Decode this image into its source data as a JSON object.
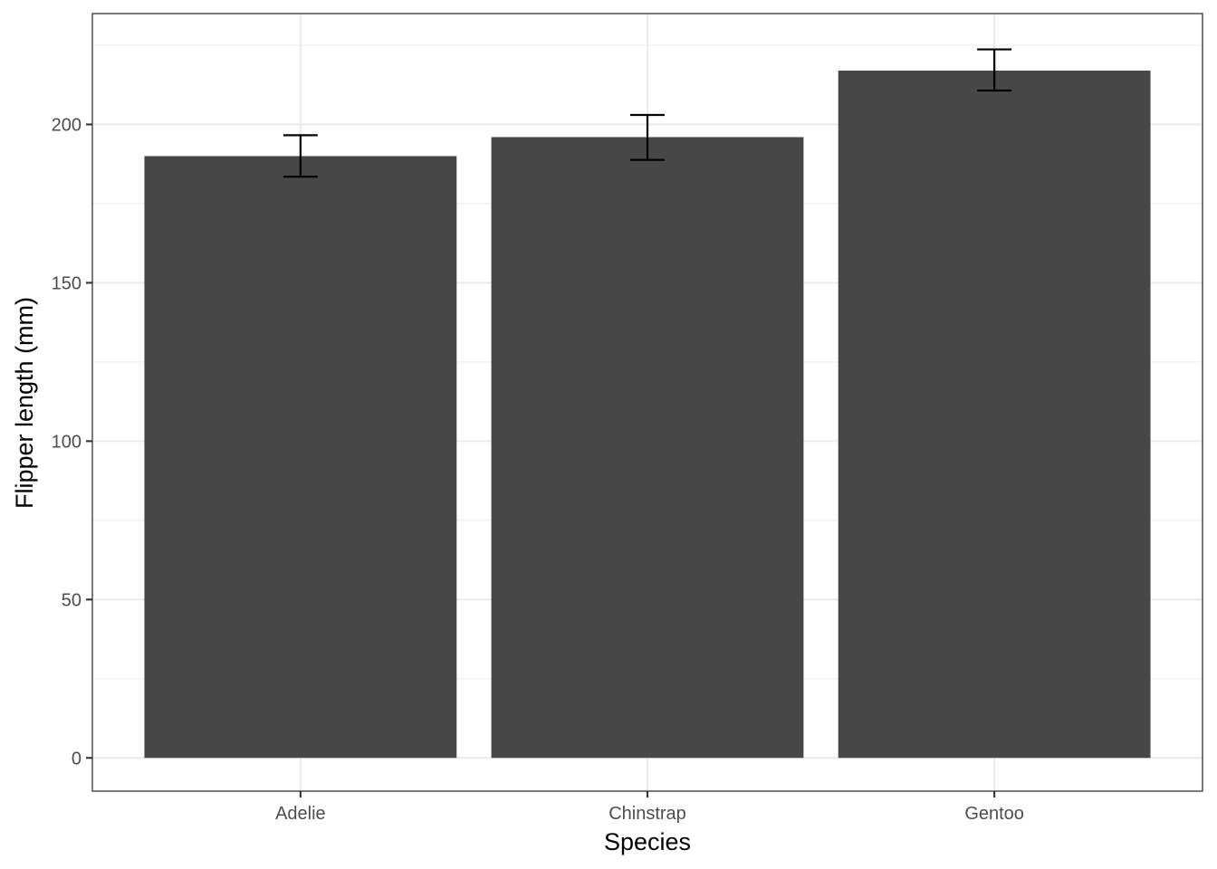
{
  "chart_data": {
    "type": "bar",
    "categories": [
      "Adelie",
      "Chinstrap",
      "Gentoo"
    ],
    "values": [
      190,
      196,
      217
    ],
    "error_low": [
      183.5,
      188.8,
      210.7
    ],
    "error_high": [
      196.6,
      203,
      223.7
    ],
    "xlabel": "Species",
    "ylabel": "Flipper length (mm)",
    "ylim": [
      -10.5,
      235
    ],
    "yticks": [
      0,
      50,
      100,
      150,
      200
    ],
    "grid": true,
    "colors": {
      "bar": "#474747",
      "errorbar": "#000000",
      "grid": "#ebebeb",
      "border": "#333333",
      "tick_label": "#4d4d4d"
    }
  }
}
